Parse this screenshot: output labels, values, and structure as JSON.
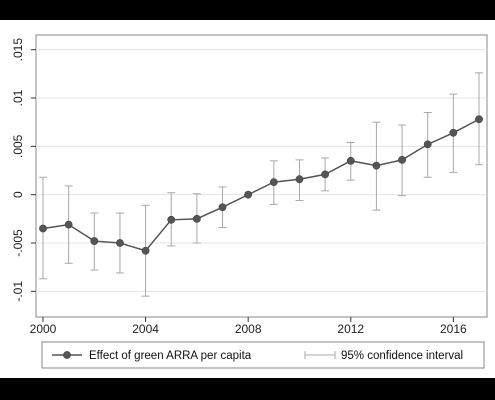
{
  "chart_data": {
    "type": "line",
    "title": "",
    "xlabel": "",
    "ylabel": "",
    "x": [
      2000,
      2001,
      2002,
      2003,
      2004,
      2005,
      2006,
      2007,
      2008,
      2009,
      2010,
      2011,
      2012,
      2013,
      2014,
      2015,
      2016,
      2017
    ],
    "series": [
      {
        "name": "Effect of green ARRA per capita",
        "values": [
          -0.0035,
          -0.0031,
          -0.0048,
          -0.005,
          -0.0058,
          -0.0026,
          -0.0025,
          -0.0013,
          0.0,
          0.0013,
          0.0016,
          0.0021,
          0.0035,
          0.003,
          0.0036,
          0.0052,
          0.0064,
          0.0078
        ],
        "ci_low": [
          -0.0087,
          -0.0071,
          -0.0078,
          -0.0081,
          -0.0105,
          -0.0053,
          -0.005,
          -0.0034,
          0.0,
          -0.001,
          -0.0006,
          0.0004,
          0.0015,
          -0.0016,
          -0.0001,
          0.0018,
          0.0023,
          0.0031
        ],
        "ci_high": [
          0.0018,
          0.0009,
          -0.0019,
          -0.0019,
          -0.0011,
          0.0002,
          0.0001,
          0.0008,
          0.0,
          0.0035,
          0.0036,
          0.0038,
          0.0054,
          0.0075,
          0.0072,
          0.0085,
          0.0104,
          0.0126
        ],
        "color": "#555555"
      }
    ],
    "ci_name": "95% confidence interval",
    "ci_color": "#a8a8a8",
    "xlim": [
      2000,
      2017
    ],
    "ylim": [
      -0.011,
      0.016
    ],
    "xticks": [
      2000,
      2004,
      2008,
      2012,
      2016
    ],
    "xtick_labels": [
      "2000",
      "2004",
      "2008",
      "2012",
      "2016"
    ],
    "yticks": [
      -0.01,
      -0.005,
      0,
      0.005,
      0.01,
      0.015
    ],
    "ytick_labels": [
      "-.01",
      "-.005",
      "0",
      ".005",
      ".01",
      ".015"
    ],
    "grid": true,
    "legend_position": "bottom"
  }
}
